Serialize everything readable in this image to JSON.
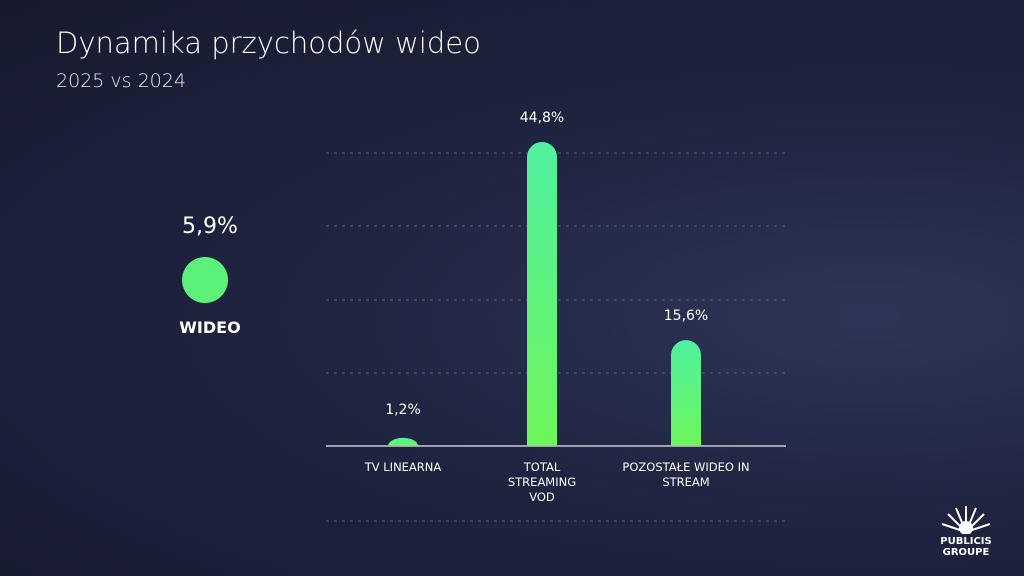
{
  "header": {
    "title": "Dynamika przychodów wideo",
    "subtitle": "2025 vs 2024"
  },
  "highlight": {
    "value": 5.9,
    "value_label": "5,9%",
    "label": "WIDEO",
    "color": "#5cf27a"
  },
  "chart_data": {
    "type": "bar",
    "categories": [
      "TV LINEARNA",
      "TOTAL STREAMING VOD",
      "POZOSTAŁE WIDEO IN STREAM"
    ],
    "values": [
      1.2,
      44.8,
      15.6
    ],
    "value_labels": [
      "1,2%",
      "44,8%",
      "15,6%"
    ],
    "color": "#5cf27a"
  },
  "logo": {
    "line1": "PUBLICIS",
    "line2": "GROUPE"
  }
}
